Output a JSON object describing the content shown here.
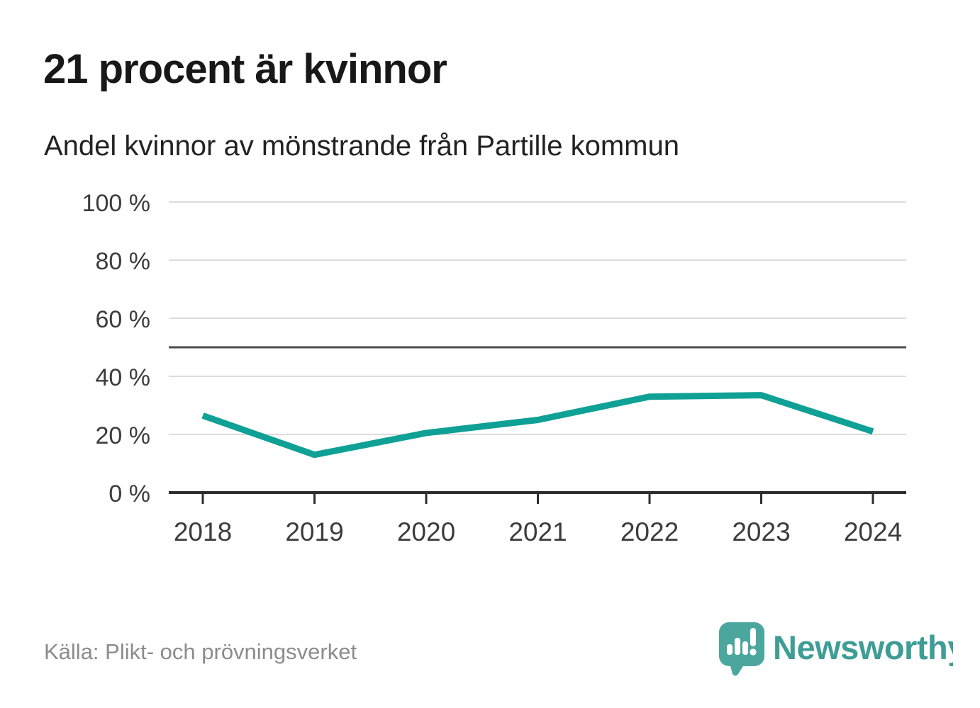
{
  "page": {
    "title": "21 procent är kvinnor",
    "subtitle": "Andel kvinnor av mönstrande från Partille kommun",
    "source": "Källa: Plikt- och prövningsverket",
    "brand": {
      "name": "Newsworthy",
      "icon": "newsworthy-speech-bubble-barchart-icon"
    }
  },
  "colors": {
    "background": "#ffffff",
    "title": "#181818",
    "subtitle": "#222222",
    "line": "#0fa096",
    "grid": "#dcdcdc",
    "axis": "#2e2e2e",
    "reference_line": "#4d4d4d",
    "tick_label": "#3c3c3c",
    "source_text": "#8c8c8c",
    "brand_text": "#3e9d94",
    "logo_bubble": "#4ba79e"
  },
  "chart_data": {
    "type": "line",
    "title": "21 procent är kvinnor",
    "subtitle": "Andel kvinnor av mönstrande från Partille kommun",
    "categories": [
      "2018",
      "2019",
      "2020",
      "2021",
      "2022",
      "2023",
      "2024"
    ],
    "series": [
      {
        "name": "Andel kvinnor av mönstrande",
        "values": [
          26.5,
          13,
          20.5,
          25,
          33,
          33.5,
          21
        ]
      }
    ],
    "unit": "%",
    "ylim": [
      0,
      100
    ],
    "yticks": [
      0,
      20,
      40,
      60,
      80,
      100
    ],
    "ytick_labels": [
      "0 %",
      "20 %",
      "40 %",
      "60 %",
      "80 %",
      "100 %"
    ],
    "reference_line": 50,
    "grid": true,
    "legend_position": "none",
    "highlight_value_label": "21"
  }
}
